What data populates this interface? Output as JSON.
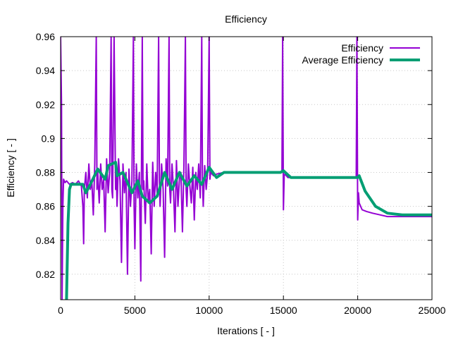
{
  "chart_data": {
    "type": "line",
    "title": "Efficiency",
    "xlabel": "Iterations [ - ]",
    "ylabel": "Efficiency [ - ]",
    "xlim": [
      0,
      25000
    ],
    "ylim": [
      0.805,
      0.96
    ],
    "xticks": [
      0,
      5000,
      10000,
      15000,
      20000,
      25000
    ],
    "xtick_labels": [
      "0",
      "5000",
      "10000",
      "15000",
      "20000",
      "25000"
    ],
    "yticks": [
      0.82,
      0.84,
      0.86,
      0.88,
      0.9,
      0.92,
      0.94,
      0.96
    ],
    "ytick_labels": [
      "0.82",
      "0.84",
      "0.86",
      "0.88",
      "0.9",
      "0.92",
      "0.94",
      "0.96"
    ],
    "grid": true,
    "legend_position": "top-right",
    "series": [
      {
        "name": "Efficiency",
        "color": "#9400d3",
        "width": 2,
        "x": [
          0,
          60,
          100,
          150,
          200,
          300,
          400,
          600,
          800,
          1000,
          1200,
          1400,
          1500,
          1550,
          1600,
          1700,
          1800,
          1900,
          2000,
          2100,
          2200,
          2300,
          2400,
          2450,
          2500,
          2600,
          2700,
          2800,
          2900,
          3000,
          3100,
          3200,
          3300,
          3400,
          3450,
          3500,
          3600,
          3700,
          3750,
          3800,
          3900,
          4000,
          4100,
          4200,
          4300,
          4400,
          4500,
          4600,
          4700,
          4800,
          4900,
          4950,
          5000,
          5100,
          5200,
          5300,
          5400,
          5500,
          5550,
          5600,
          5700,
          5800,
          5900,
          6000,
          6100,
          6200,
          6300,
          6400,
          6500,
          6600,
          6650,
          6700,
          6800,
          6900,
          7000,
          7100,
          7200,
          7300,
          7350,
          7400,
          7500,
          7600,
          7700,
          7800,
          7900,
          8000,
          8100,
          8200,
          8300,
          8400,
          8450,
          8500,
          8600,
          8700,
          8800,
          8900,
          9000,
          9100,
          9200,
          9300,
          9400,
          9500,
          9550,
          9600,
          9700,
          9800,
          9900,
          10000,
          10050,
          10100,
          10300,
          10500,
          11000,
          12000,
          13000,
          14000,
          14900,
          14950,
          15000,
          15050,
          15100,
          15300,
          15600,
          16000,
          17000,
          18000,
          19000,
          19900,
          19950,
          20000,
          20050,
          20100,
          20300,
          20600,
          21000,
          21500,
          22000,
          22500,
          23000,
          24000,
          25000
        ],
        "y": [
          0.96,
          0.92,
          0.805,
          0.86,
          0.876,
          0.874,
          0.875,
          0.873,
          0.874,
          0.873,
          0.875,
          0.872,
          0.86,
          0.838,
          0.87,
          0.88,
          0.865,
          0.885,
          0.87,
          0.875,
          0.855,
          0.885,
          0.96,
          0.87,
          0.88,
          0.862,
          0.885,
          0.87,
          0.876,
          0.845,
          0.888,
          0.868,
          0.88,
          0.96,
          0.87,
          0.865,
          0.96,
          0.87,
          0.88,
          0.86,
          0.888,
          0.875,
          0.827,
          0.885,
          0.868,
          0.88,
          0.82,
          0.882,
          0.86,
          0.875,
          0.96,
          0.86,
          0.835,
          0.885,
          0.865,
          0.88,
          0.816,
          0.96,
          0.87,
          0.875,
          0.85,
          0.885,
          0.862,
          0.87,
          0.832,
          0.886,
          0.86,
          0.88,
          0.868,
          0.96,
          0.875,
          0.86,
          0.885,
          0.87,
          0.83,
          0.888,
          0.872,
          0.96,
          0.87,
          0.862,
          0.885,
          0.87,
          0.845,
          0.887,
          0.86,
          0.876,
          0.88,
          0.845,
          0.884,
          0.96,
          0.87,
          0.86,
          0.885,
          0.872,
          0.862,
          0.883,
          0.852,
          0.88,
          0.87,
          0.885,
          0.865,
          0.96,
          0.875,
          0.86,
          0.884,
          0.87,
          0.88,
          0.96,
          0.876,
          0.88,
          0.878,
          0.879,
          0.88,
          0.88,
          0.88,
          0.88,
          0.88,
          0.96,
          0.858,
          0.878,
          0.879,
          0.877,
          0.877,
          0.877,
          0.877,
          0.877,
          0.877,
          0.877,
          0.96,
          0.852,
          0.868,
          0.862,
          0.858,
          0.857,
          0.856,
          0.855,
          0.854,
          0.854,
          0.854,
          0.854,
          0.854
        ]
      },
      {
        "name": "Average Efficiency",
        "color": "#009e73",
        "width": 4,
        "x": [
          400,
          500,
          600,
          700,
          1500,
          1700,
          2000,
          2500,
          3000,
          3200,
          3700,
          3800,
          4200,
          4500,
          4800,
          5200,
          5500,
          6000,
          6500,
          7000,
          7500,
          8000,
          8500,
          9000,
          9500,
          10000,
          10500,
          11000,
          14800,
          15000,
          15500,
          20000,
          20100,
          20500,
          21200,
          22000,
          23000,
          25000
        ],
        "y": [
          0.805,
          0.85,
          0.87,
          0.873,
          0.873,
          0.868,
          0.873,
          0.882,
          0.876,
          0.884,
          0.886,
          0.878,
          0.88,
          0.874,
          0.868,
          0.875,
          0.866,
          0.862,
          0.866,
          0.88,
          0.87,
          0.88,
          0.872,
          0.878,
          0.873,
          0.883,
          0.877,
          0.88,
          0.88,
          0.881,
          0.877,
          0.877,
          0.878,
          0.869,
          0.86,
          0.856,
          0.855,
          0.855
        ]
      }
    ]
  }
}
